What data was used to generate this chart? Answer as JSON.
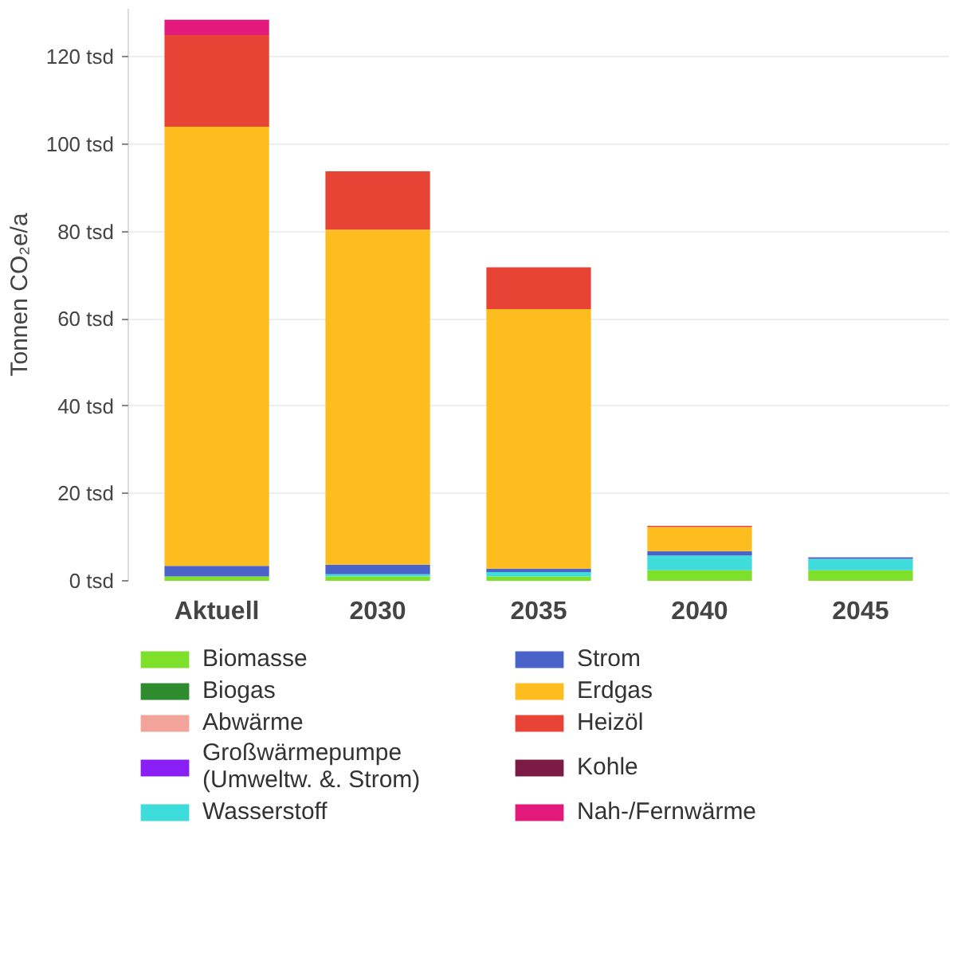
{
  "chart_data": {
    "type": "bar",
    "stacked": true,
    "ylabel": "Tonnen CO₂e/a",
    "categories": [
      "Aktuell",
      "2030",
      "2035",
      "2040",
      "2045"
    ],
    "series": [
      {
        "name": "Biomasse",
        "color": "#7ee02a",
        "values": [
          1,
          1,
          1,
          2.4,
          2.4
        ]
      },
      {
        "name": "Biogas",
        "color": "#2e8b2e",
        "values": [
          0,
          0,
          0,
          0,
          0
        ]
      },
      {
        "name": "Abwärme",
        "color": "#f2a39a",
        "values": [
          0,
          0,
          0,
          0,
          0
        ]
      },
      {
        "name": "Großwärmepumpe\n(Umweltw. &. Strom)",
        "color": "#8a1ff5",
        "values": [
          0,
          0,
          0,
          0,
          0
        ]
      },
      {
        "name": "Wasserstoff",
        "color": "#3fdcdc",
        "values": [
          0,
          0.5,
          1,
          3.4,
          2.6
        ]
      },
      {
        "name": "Strom",
        "color": "#4a63c8",
        "values": [
          2.4,
          2.2,
          0.8,
          1,
          0.4
        ]
      },
      {
        "name": "Erdgas",
        "color": "#fdbd1f",
        "values": [
          100.6,
          76.7,
          59.4,
          5.5,
          0
        ]
      },
      {
        "name": "Heizöl",
        "color": "#e84435",
        "values": [
          21,
          13.4,
          9.6,
          0.3,
          0
        ]
      },
      {
        "name": "Kohle",
        "color": "#7a1a45",
        "values": [
          0,
          0,
          0,
          0,
          0
        ]
      },
      {
        "name": "Nah-/Fernwärme",
        "color": "#e31a7c",
        "values": [
          3.5,
          0,
          0,
          0,
          0
        ]
      }
    ],
    "ylim": [
      0,
      131
    ],
    "yticks": [
      {
        "value": 0,
        "label": "0 tsd"
      },
      {
        "value": 20,
        "label": "20 tsd"
      },
      {
        "value": 40,
        "label": "40 tsd"
      },
      {
        "value": 60,
        "label": "60 tsd"
      },
      {
        "value": 80,
        "label": "80 tsd"
      },
      {
        "value": 100,
        "label": "100 tsd"
      },
      {
        "value": 120,
        "label": "120 tsd"
      }
    ],
    "grid": "y",
    "legend": "bottom"
  }
}
